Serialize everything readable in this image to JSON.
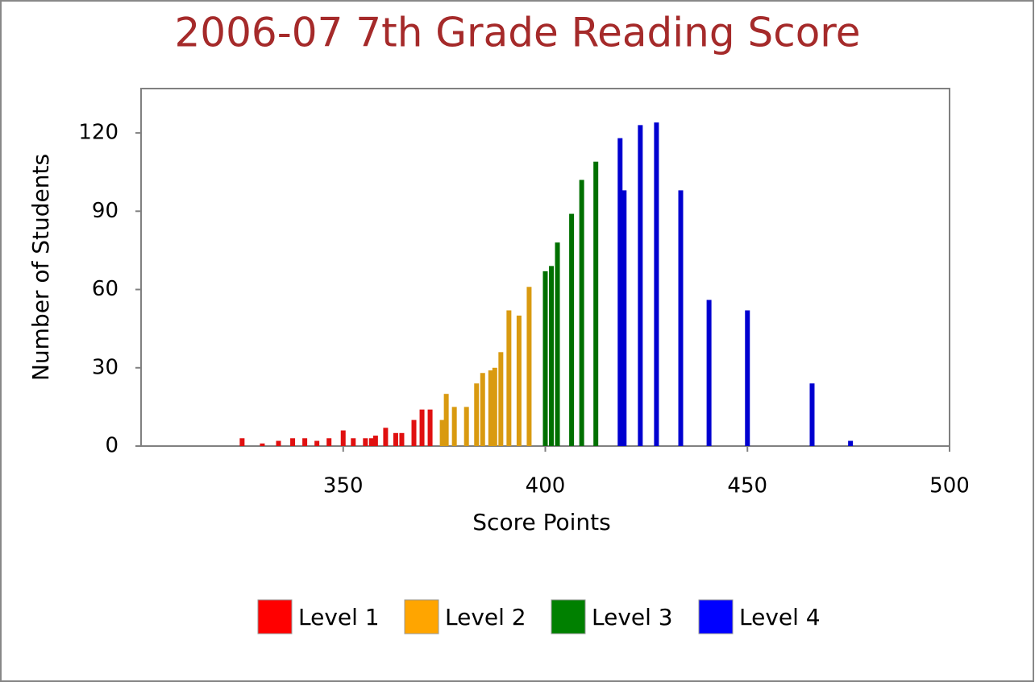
{
  "chart_data": {
    "type": "bar",
    "title": "2006-07 7th Grade Reading Score",
    "x_label": "Score Points",
    "y_label": "Number of Students",
    "xlim": [
      300,
      500
    ],
    "xticks": [
      350,
      400,
      450,
      500
    ],
    "ylim": [
      0,
      137
    ],
    "yticks": [
      0,
      30,
      60,
      90,
      120
    ],
    "series": [
      {
        "name": "Level 1",
        "color": "#e01010",
        "legend_color": "#ff0000",
        "x": [
          325,
          330,
          334,
          337.5,
          340.5,
          343.5,
          346.5,
          350,
          352.5,
          355.5,
          357,
          358,
          360.5,
          363,
          364.5,
          367.5,
          369.5,
          371.5
        ],
        "values": [
          3,
          1,
          2,
          3,
          3,
          2,
          3,
          6,
          3,
          3,
          3,
          4,
          7,
          5,
          5,
          10,
          14,
          14
        ]
      },
      {
        "name": "Level 2",
        "color": "#d99a10",
        "legend_color": "#ffa500",
        "x": [
          374.5,
          375.5,
          377.5,
          380.5,
          383,
          384.5,
          386.5,
          387.5,
          389,
          391,
          393.5,
          396
        ],
        "values": [
          10,
          20,
          15,
          15,
          24,
          28,
          29,
          30,
          36,
          52,
          50,
          61
        ]
      },
      {
        "name": "Level 3",
        "color": "#007000",
        "legend_color": "#008000",
        "x": [
          400,
          401.5,
          403,
          406.5,
          409,
          412.5
        ],
        "values": [
          67,
          69,
          78,
          89,
          102,
          109
        ]
      },
      {
        "name": "Level 4",
        "color": "#0000d0",
        "legend_color": "#0000ff",
        "x": [
          418.5,
          419.5,
          423.5,
          427.5,
          433.5,
          440.5,
          450,
          466,
          475.5
        ],
        "values": [
          118,
          98,
          123,
          124,
          98,
          56,
          52,
          24,
          2
        ]
      }
    ]
  }
}
